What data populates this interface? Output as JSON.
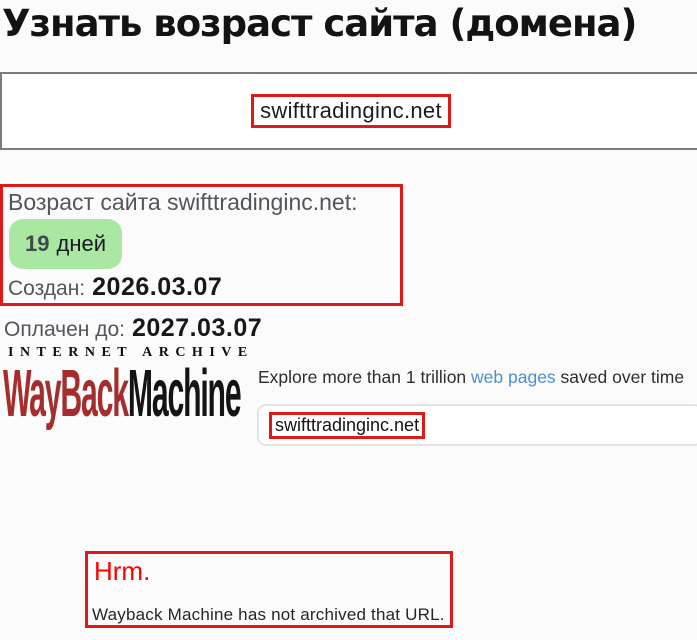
{
  "page": {
    "title": "Узнать возраст сайта (домена)"
  },
  "domain_input": {
    "value": "swifttradinginc.net"
  },
  "result": {
    "age_label": "Возраст сайта swifttradinginc.net:",
    "age_value": "19",
    "age_unit": "дней",
    "created_label": "Создан:",
    "created_value": "2026.03.07",
    "paid_until_label": "Оплачен до:",
    "paid_until_value": "2027.03.07"
  },
  "wayback": {
    "archive_label": "INTERNET ARCHIVE",
    "logo_part1": "WayBack",
    "logo_part2": "Machine",
    "tagline_before": "Explore more than 1 trillion ",
    "tagline_link": "web pages",
    "tagline_after": " saved over time",
    "search_value": "swifttradinginc.net",
    "error_title": "Hrm.",
    "error_message": "Wayback Machine has not archived that URL."
  },
  "colors": {
    "annotation_red": "#dc1a1a",
    "badge_green": "#a9e7a3",
    "logo_red": "#a42e2e",
    "link_blue": "#4d8fd1",
    "error_red": "#ff0000"
  }
}
